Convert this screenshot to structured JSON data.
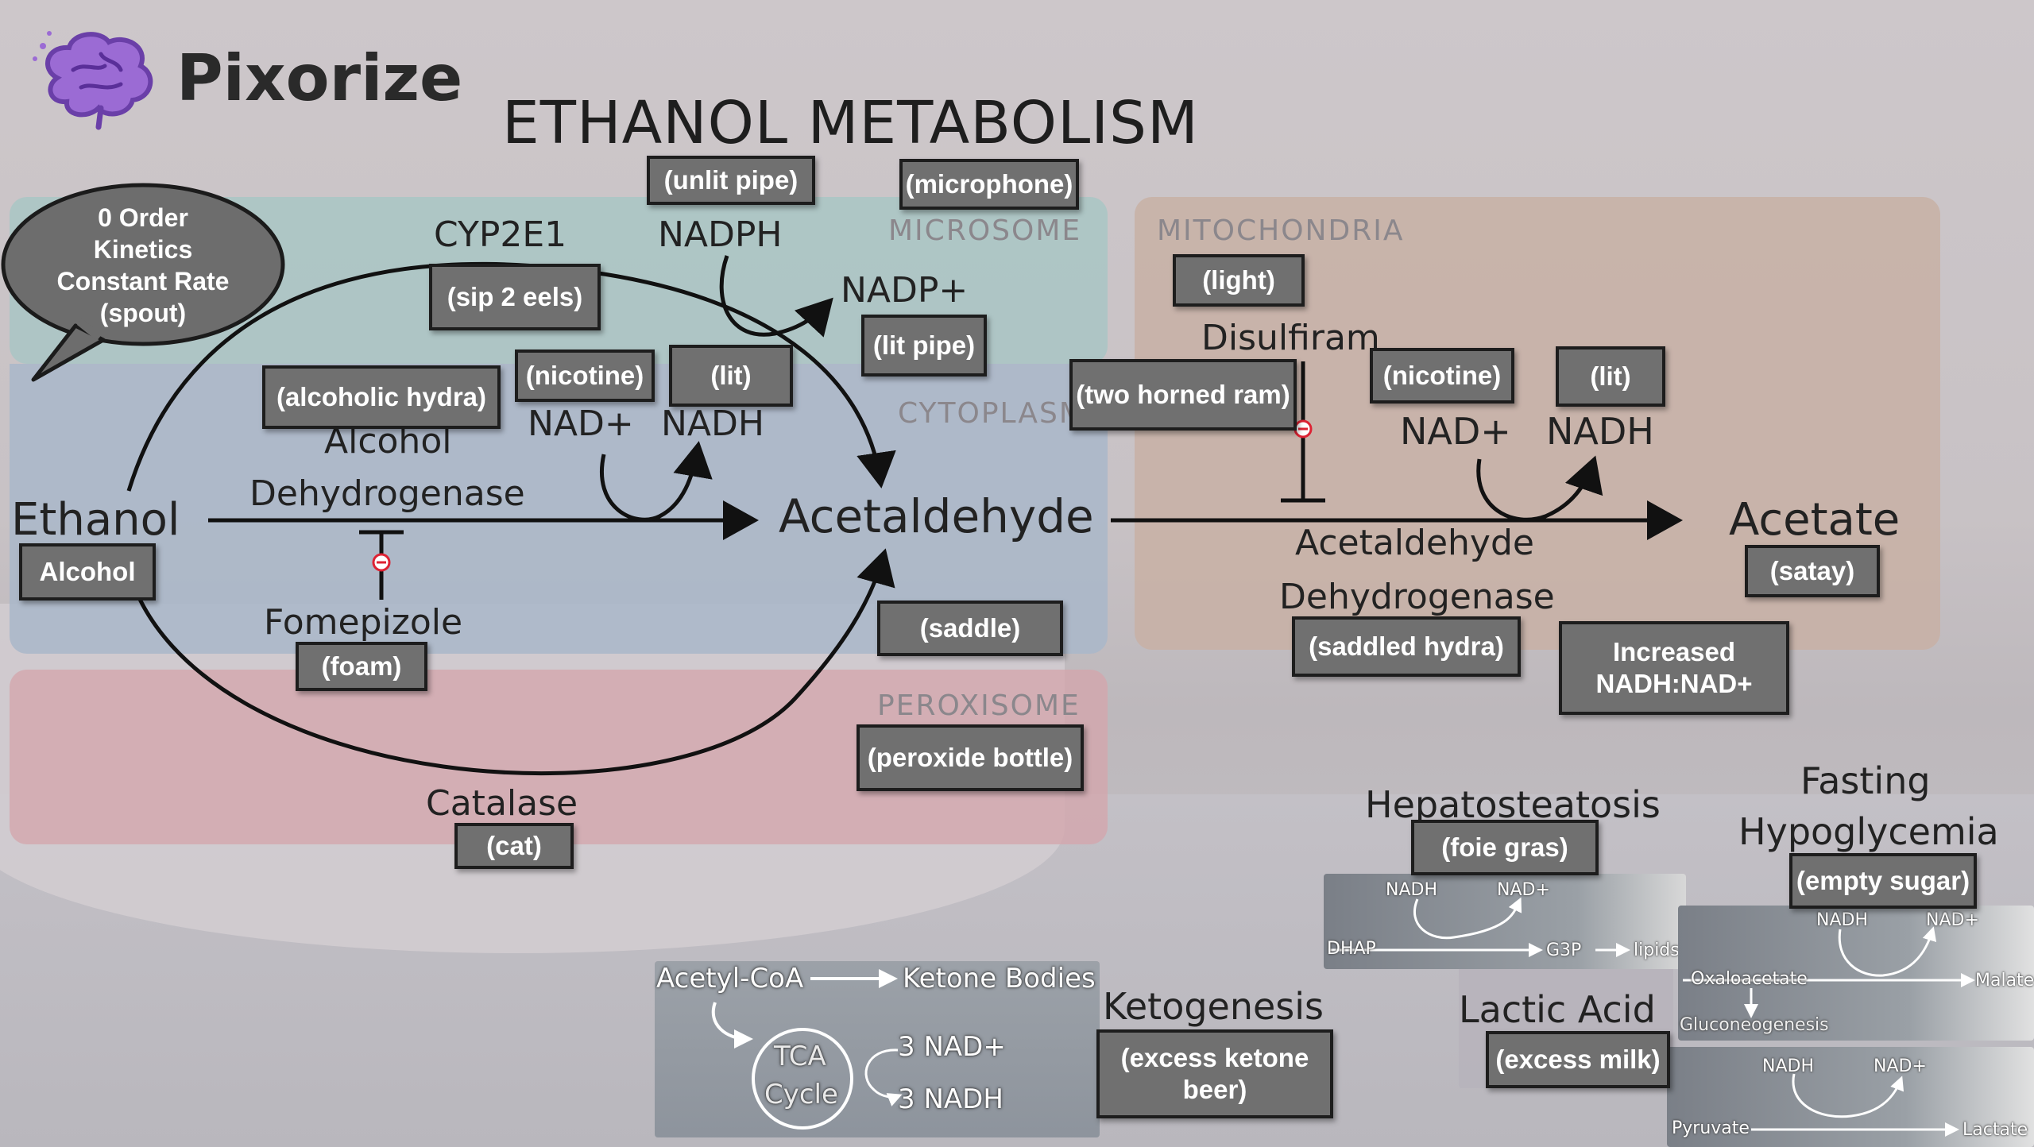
{
  "brand": {
    "name": "Pixorize"
  },
  "title": "ETHANOL METABOLISM",
  "regions": {
    "microsome": "MICROSOME",
    "cytoplasm": "CYTOPLASM",
    "peroxisome": "PEROXISOME",
    "mitochondria": "MITOCHONDRIA"
  },
  "bubble": {
    "text": "0 Order\nKinetics\nConstant Rate\n(spout)"
  },
  "terms": {
    "ethanol": "Ethanol",
    "acetaldehyde": "Acetaldehyde",
    "acetate": "Acetate",
    "cyp2e1": "CYP2E1",
    "nadph": "NADPH",
    "nadp": "NADP+",
    "nad_left": "NAD+",
    "nadh_left": "NADH",
    "adh_line1": "Alcohol",
    "adh_line2": "Dehydrogenase",
    "fomepizole": "Fomepizole",
    "catalase": "Catalase",
    "disulfiram": "Disulfiram",
    "nad_right": "NAD+",
    "nadh_right": "NADH",
    "aldh_line1": "Acetaldehyde",
    "aldh_line2": "Dehydrogenase",
    "hepatosteatosis": "Hepatosteatosis",
    "fasting_line1": "Fasting",
    "fasting_line2": "Hypoglycemia",
    "ketogenesis": "Ketogenesis",
    "lactic_acid": "Lactic Acid"
  },
  "captions": {
    "alcohol": "Alcohol",
    "sip2eels": "(sip 2 eels)",
    "unlit_pipe": "(unlit pipe)",
    "microphone": "(microphone)",
    "lit_pipe": "(lit pipe)",
    "alcoholic_hydra": "(alcoholic hydra)",
    "nicotine_left": "(nicotine)",
    "lit_left": "(lit)",
    "foam": "(foam)",
    "saddle": "(saddle)",
    "peroxide_bottle": "(peroxide bottle)",
    "cat": "(cat)",
    "light": "(light)",
    "two_horned_ram": "(two horned ram)",
    "nicotine_right": "(nicotine)",
    "lit_right": "(lit)",
    "satay": "(satay)",
    "saddled_hydra": "(saddled hydra)",
    "increased_ratio": "Increased\nNADH:NAD+",
    "foie_gras": "(foie gras)",
    "empty_sugar": "(empty sugar)",
    "excess_ketone_beer": "(excess ketone\nbeer)",
    "excess_milk": "(excess milk)"
  },
  "inset_hepatosteatosis": {
    "nadh": "NADH",
    "nad": "NAD+",
    "dhap": "DHAP",
    "g3p": "G3P",
    "lipids": "lipids"
  },
  "inset_fasting": {
    "nadh": "NADH",
    "nad": "NAD+",
    "oxaloacetate": "Oxaloacetate",
    "malate": "Malate",
    "gluconeogenesis": "Gluconeogenesis"
  },
  "inset_lactic": {
    "nadh": "NADH",
    "nad": "NAD+",
    "pyruvate": "Pyruvate",
    "lactate": "Lactate"
  },
  "inset_keto": {
    "acetyl_coa": "Acetyl-CoA",
    "ketone_bodies": "Ketone Bodies",
    "tca_1": "TCA",
    "tca_2": "Cycle",
    "nad3": "3 NAD+",
    "nadh3": "3 NADH"
  },
  "colors": {
    "microsome": "#a9c6c4",
    "cytoplasm": "#a9b7c9",
    "peroxisome": "#d3a6ad",
    "mitochondria": "#c8b0a4",
    "caption_fill": "#707070",
    "brand_purple": "#8a5cc7"
  }
}
